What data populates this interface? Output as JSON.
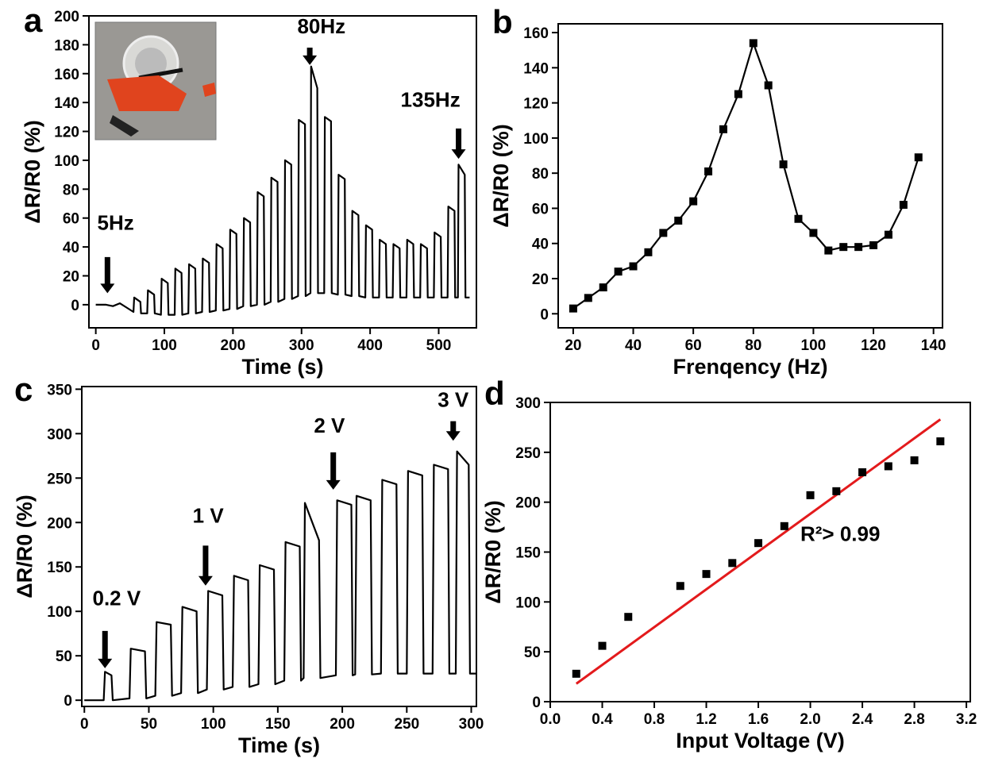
{
  "chart_data": [
    {
      "type": "line",
      "panel_label": "a",
      "x_label": "Time (s)",
      "y_label": "ΔR/R0 (%)",
      "color": "#000000",
      "xlim": [
        -10,
        555
      ],
      "ylim": [
        -16,
        200
      ],
      "xticks": [
        0,
        100,
        200,
        300,
        400,
        500
      ],
      "yticks": [
        0,
        20,
        40,
        60,
        80,
        100,
        120,
        140,
        160,
        180,
        200
      ],
      "annotations": [
        "5Hz",
        "80Hz",
        "135Hz"
      ],
      "x": [
        0,
        15,
        25,
        35,
        45,
        55,
        56,
        65,
        66,
        75,
        76,
        85,
        86,
        95,
        96,
        105,
        106,
        115,
        116,
        125,
        126,
        135,
        136,
        145,
        146,
        155,
        156,
        165,
        166,
        175,
        176,
        185,
        186,
        195,
        196,
        205,
        206,
        215,
        216,
        225,
        226,
        235,
        236,
        245,
        246,
        255,
        256,
        265,
        266,
        275,
        276,
        285,
        286,
        295,
        296,
        305,
        306,
        313,
        314,
        323,
        324,
        333,
        334,
        343,
        344,
        353,
        354,
        363,
        364,
        373,
        374,
        383,
        384,
        393,
        394,
        403,
        404,
        413,
        414,
        423,
        424,
        433,
        434,
        443,
        444,
        453,
        454,
        463,
        464,
        473,
        474,
        483,
        484,
        493,
        494,
        503,
        504,
        513,
        514,
        523,
        524,
        528,
        529,
        538,
        539,
        545
      ],
      "values": [
        0,
        0,
        -1,
        1,
        -2,
        -5,
        5,
        2,
        -6,
        -6,
        10,
        7,
        -6,
        -7,
        18,
        15,
        -7,
        -7,
        25,
        22,
        -7,
        -6,
        28,
        25,
        -6,
        -5,
        32,
        29,
        -5,
        -4,
        42,
        39,
        -4,
        -3,
        52,
        49,
        -3,
        -1,
        60,
        57,
        -1,
        0,
        78,
        75,
        0,
        2,
        88,
        85,
        2,
        4,
        100,
        97,
        4,
        6,
        128,
        125,
        6,
        8,
        165,
        150,
        8,
        8,
        130,
        127,
        8,
        7,
        90,
        87,
        7,
        6,
        65,
        62,
        6,
        5,
        55,
        52,
        5,
        5,
        45,
        42,
        5,
        5,
        42,
        39,
        5,
        5,
        45,
        42,
        5,
        5,
        42,
        39,
        5,
        5,
        50,
        47,
        5,
        5,
        68,
        65,
        5,
        5,
        97,
        90,
        5,
        5
      ]
    },
    {
      "type": "line",
      "panel_label": "b",
      "x_label": "Frenqency (Hz)",
      "y_label": "ΔR/R0 (%)",
      "color": "#000000",
      "markers": true,
      "xlim": [
        15,
        143
      ],
      "ylim": [
        -8,
        165
      ],
      "xticks": [
        20,
        40,
        60,
        80,
        100,
        120,
        140
      ],
      "yticks": [
        0,
        20,
        40,
        60,
        80,
        100,
        120,
        140,
        160
      ],
      "annotations": [],
      "x": [
        20,
        25,
        30,
        35,
        40,
        45,
        50,
        55,
        60,
        65,
        70,
        75,
        80,
        85,
        90,
        95,
        100,
        105,
        110,
        115,
        120,
        125,
        130,
        135
      ],
      "values": [
        3,
        9,
        15,
        24,
        27,
        35,
        46,
        53,
        64,
        81,
        105,
        125,
        154,
        130,
        85,
        54,
        46,
        36,
        38,
        38,
        39,
        45,
        62,
        89
      ]
    },
    {
      "type": "line",
      "panel_label": "c",
      "x_label": "Time (s)",
      "y_label": "ΔR/R0 (%)",
      "color": "#000000",
      "xlim": [
        -2,
        304
      ],
      "ylim": [
        -7,
        353
      ],
      "xticks": [
        0,
        50,
        100,
        150,
        200,
        250,
        300
      ],
      "yticks": [
        0,
        50,
        100,
        150,
        200,
        250,
        300,
        350
      ],
      "annotations": [
        "0.2 V",
        "1 V",
        "2 V",
        "3 V"
      ],
      "x": [
        0,
        15,
        16,
        21,
        22,
        35,
        36,
        47,
        48,
        55,
        56,
        67,
        68,
        75,
        76,
        87,
        88,
        95,
        96,
        107,
        108,
        115,
        116,
        127,
        128,
        135,
        136,
        147,
        148,
        155,
        156,
        167,
        168,
        170,
        171,
        182,
        183,
        195,
        196,
        207,
        208,
        210,
        211,
        222,
        223,
        230,
        231,
        242,
        243,
        250,
        251,
        262,
        263,
        270,
        271,
        282,
        283,
        288,
        289,
        298,
        299,
        304
      ],
      "values": [
        0,
        0,
        32,
        28,
        0,
        2,
        58,
        55,
        2,
        5,
        88,
        85,
        5,
        8,
        105,
        100,
        8,
        12,
        123,
        118,
        12,
        15,
        140,
        135,
        15,
        18,
        152,
        147,
        18,
        22,
        178,
        173,
        22,
        25,
        222,
        180,
        25,
        28,
        225,
        220,
        28,
        29,
        230,
        225,
        29,
        30,
        248,
        243,
        30,
        30,
        258,
        253,
        30,
        30,
        265,
        260,
        30,
        30,
        280,
        265,
        30,
        30
      ]
    },
    {
      "type": "scatter",
      "panel_label": "d",
      "x_label": "Input Voltage (V)",
      "y_label": "ΔR/R0 (%)",
      "color": "#000000",
      "xlim": [
        0,
        3.23
      ],
      "ylim": [
        0,
        300
      ],
      "xticks": [
        {
          "value": 0,
          "label": "0.0"
        },
        0.4,
        0.8,
        1.2,
        1.6,
        {
          "value": 2,
          "label": "2.0"
        },
        2.4,
        2.8,
        3.2
      ],
      "yticks": [
        0,
        50,
        100,
        150,
        200,
        250,
        300
      ],
      "annotations": [
        "R²> 0.99"
      ],
      "x": [
        0.2,
        0.4,
        0.6,
        1.0,
        1.2,
        1.4,
        1.6,
        1.8,
        2.0,
        2.2,
        2.4,
        2.6,
        2.8,
        3.0
      ],
      "values": [
        28,
        56,
        85,
        116,
        128,
        139,
        159,
        176,
        207,
        211,
        230,
        236,
        242,
        261
      ],
      "fit": {
        "color": "#e31a1c",
        "x": [
          0.2,
          3.0
        ],
        "values": [
          18,
          283
        ]
      }
    }
  ]
}
